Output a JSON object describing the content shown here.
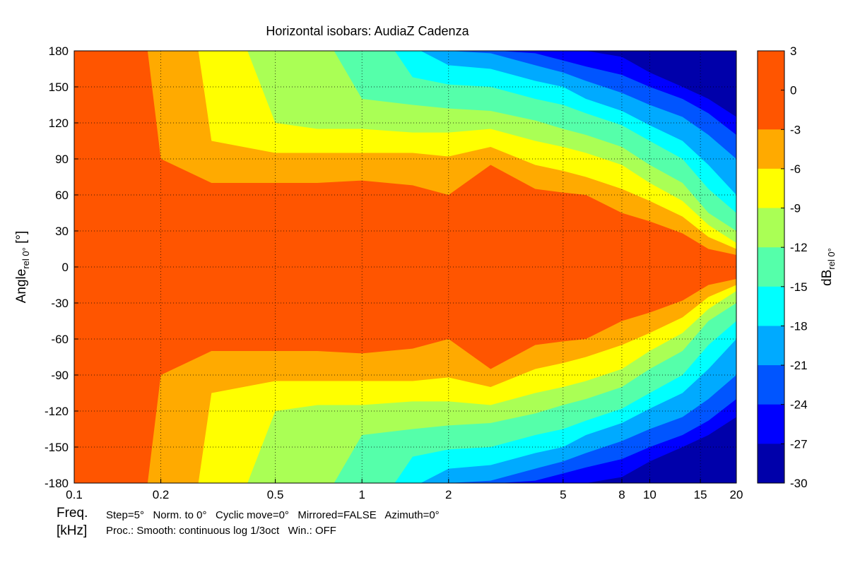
{
  "chart_data": {
    "type": "heatmap",
    "title": "Horizontal isobars: AudiaZ  Cadenza",
    "xlabel": "Freq.",
    "xlabel_unit": "[kHz]",
    "ylabel": {
      "main": "Angle",
      "sub": "rel 0°",
      "unit": " [°]"
    },
    "colorbar_label": {
      "main": "dB",
      "sub": "rel 0°"
    },
    "x_scale": "log",
    "xlim": [
      0.1,
      20
    ],
    "x_ticks": [
      0.1,
      0.2,
      0.5,
      1,
      2,
      5,
      8,
      10,
      15,
      20
    ],
    "x_tick_labels": [
      "0.1",
      "0.2",
      "0.5",
      "1",
      "2",
      "5",
      "8",
      "10",
      "15",
      "20"
    ],
    "ylim": [
      -180,
      180
    ],
    "y_ticks": [
      180,
      150,
      120,
      90,
      60,
      30,
      0,
      -30,
      -60,
      -90,
      -120,
      -150,
      -180
    ],
    "y_tick_labels": [
      "180",
      "150",
      "120",
      "90",
      "60",
      "30",
      "0",
      "-30",
      "-60",
      "-90",
      "-120",
      "-150",
      "-180"
    ],
    "grid": true,
    "colorbar_levels": [
      3,
      0,
      -3,
      -6,
      -9,
      -12,
      -15,
      -18,
      -21,
      -24,
      -27,
      -30
    ],
    "colorbar_tick_labels": [
      "3",
      "0",
      "-3",
      "-6",
      "-9",
      "-12",
      "-15",
      "-18",
      "-21",
      "-24",
      "-27",
      "-30"
    ],
    "level_colors": [
      {
        "from": 0,
        "to": 3,
        "color": "#ff5500"
      },
      {
        "from": -3,
        "to": 0,
        "color": "#ff5500"
      },
      {
        "from": -6,
        "to": -3,
        "color": "#ffaa00"
      },
      {
        "from": -9,
        "to": -6,
        "color": "#ffff00"
      },
      {
        "from": -12,
        "to": -9,
        "color": "#aaff55"
      },
      {
        "from": -15,
        "to": -12,
        "color": "#55ffaa"
      },
      {
        "from": -18,
        "to": -15,
        "color": "#00ffff"
      },
      {
        "from": -21,
        "to": -18,
        "color": "#00aaff"
      },
      {
        "from": -24,
        "to": -21,
        "color": "#0055ff"
      },
      {
        "from": -27,
        "to": -24,
        "color": "#0000ff"
      },
      {
        "from": -30,
        "to": -27,
        "color": "#0000aa"
      }
    ],
    "isobar_contours": [
      {
        "level_db": -3,
        "freq_khz": [
          0.1,
          0.18,
          0.2,
          0.3,
          0.5,
          0.7,
          1,
          1.5,
          2,
          2.8,
          4,
          5,
          6,
          8,
          10,
          13,
          16,
          20
        ],
        "angle_deg": [
          180,
          180,
          90,
          70,
          70,
          70,
          72,
          68,
          60,
          85,
          65,
          62,
          60,
          45,
          38,
          28,
          15,
          10
        ]
      },
      {
        "level_db": -6,
        "freq_khz": [
          0.1,
          0.2,
          0.27,
          0.3,
          0.5,
          0.7,
          1,
          1.5,
          2,
          2.8,
          4,
          5,
          6,
          8,
          10,
          13,
          16,
          20
        ],
        "angle_deg": [
          180,
          180,
          180,
          105,
          95,
          95,
          95,
          95,
          92,
          100,
          85,
          80,
          75,
          65,
          55,
          42,
          25,
          15
        ]
      },
      {
        "level_db": -9,
        "freq_khz": [
          0.1,
          0.3,
          0.4,
          0.5,
          0.7,
          1,
          1.5,
          2,
          2.8,
          4,
          5,
          6,
          8,
          10,
          13,
          16,
          20
        ],
        "angle_deg": [
          180,
          180,
          180,
          120,
          115,
          115,
          112,
          112,
          115,
          105,
          100,
          95,
          85,
          70,
          55,
          35,
          20
        ]
      },
      {
        "level_db": -12,
        "freq_khz": [
          0.1,
          0.5,
          0.8,
          1,
          1.5,
          2,
          2.8,
          4,
          5,
          6,
          8,
          10,
          13,
          16,
          20
        ],
        "angle_deg": [
          180,
          180,
          180,
          140,
          135,
          132,
          130,
          122,
          115,
          110,
          100,
          85,
          70,
          45,
          30
        ]
      },
      {
        "level_db": -15,
        "freq_khz": [
          0.1,
          1,
          1.3,
          1.5,
          2,
          2.8,
          4,
          5,
          6,
          8,
          10,
          13,
          16,
          20
        ],
        "angle_deg": [
          180,
          180,
          180,
          158,
          152,
          150,
          140,
          135,
          128,
          118,
          105,
          90,
          65,
          45
        ]
      },
      {
        "level_db": -18,
        "freq_khz": [
          0.1,
          1.3,
          1.6,
          2,
          2.8,
          4,
          5,
          6,
          8,
          10,
          13,
          16,
          20
        ],
        "angle_deg": [
          180,
          180,
          180,
          168,
          165,
          155,
          150,
          140,
          130,
          118,
          105,
          85,
          60
        ]
      },
      {
        "level_db": -21,
        "freq_khz": [
          0.1,
          1.5,
          2,
          2.8,
          4,
          5,
          6,
          8,
          10,
          13,
          16,
          20
        ],
        "angle_deg": [
          180,
          180,
          180,
          178,
          168,
          162,
          155,
          145,
          135,
          125,
          110,
          90
        ]
      },
      {
        "level_db": -24,
        "freq_khz": [
          0.1,
          3,
          4,
          5,
          6,
          8,
          10,
          13,
          16,
          20
        ],
        "angle_deg": [
          180,
          180,
          178,
          172,
          167,
          160,
          150,
          140,
          128,
          110
        ]
      },
      {
        "level_db": -27,
        "freq_khz": [
          0.1,
          6,
          8,
          10,
          13,
          16,
          20
        ],
        "angle_deg": [
          180,
          180,
          175,
          162,
          150,
          140,
          125
        ]
      }
    ]
  },
  "footer": {
    "freq_label": "Freq.",
    "unit_label": "[kHz]",
    "settings_line": "Step=5°   Norm. to 0°   Cyclic move=0°   Mirrored=FALSE   Azimuth=0°",
    "proc_line": "Proc.: Smooth: continuous log 1/3oct   Win.: OFF"
  }
}
